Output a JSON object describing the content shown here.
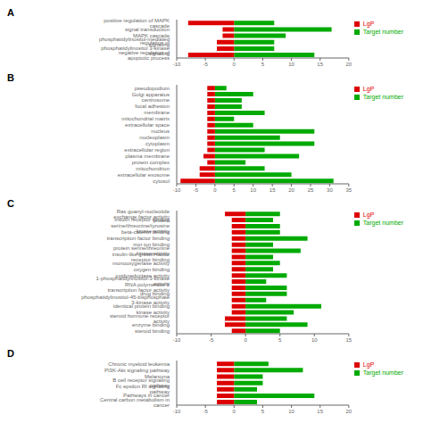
{
  "chart_data": [
    {
      "type": "bar",
      "orientation": "horizontal",
      "title": "A",
      "legend": "right",
      "grid": false,
      "categories": [
        "positive regulation of MAPK cascade",
        "signal transduction",
        "MAPK cascade",
        "phosphatidylinositol-mediated signaling",
        "regulation of phosphatidylinositol 3-kinase signaling",
        "negative regulation of apoptotic process"
      ],
      "series": [
        {
          "name": "Target number",
          "color": "#00AA00",
          "values": [
            7,
            17,
            9,
            7,
            7,
            14
          ]
        },
        {
          "name": "LgP",
          "color": "#DD0000",
          "values": [
            -8,
            -2,
            -2,
            -3,
            -3,
            -8
          ]
        }
      ],
      "xlim": [
        -10,
        20
      ],
      "xticks": [
        -10,
        -5,
        0,
        5,
        10,
        15,
        20
      ]
    },
    {
      "type": "bar",
      "orientation": "horizontal",
      "title": "B",
      "legend": "right",
      "grid": false,
      "categories": [
        "pseudopodium",
        "Golgi apparatus",
        "centrosome",
        "focal adhesion",
        "membrane",
        "mitochondrial matrix",
        "extracellular space",
        "nucleus",
        "nucleoplasm",
        "cytoplasm",
        "extracellular region",
        "plasma membrane",
        "protein complex",
        "mitochondrion",
        "extracellular exosome",
        "cytosol"
      ],
      "series": [
        {
          "name": "Target number",
          "color": "#00AA00",
          "values": [
            3,
            10,
            7,
            7,
            13,
            5,
            10,
            26,
            17,
            26,
            13,
            22,
            8,
            13,
            20,
            31
          ]
        },
        {
          "name": "LgP",
          "color": "#DD0000",
          "values": [
            -2,
            -2,
            -2,
            -2,
            -2,
            -2,
            -2,
            -2,
            -2,
            -2,
            -2,
            -3,
            -2,
            -4,
            -4,
            -9
          ]
        }
      ],
      "xlim": [
        -10,
        35
      ],
      "xticks": [
        -10,
        -5,
        0,
        5,
        10,
        15,
        20,
        25,
        30,
        35
      ]
    },
    {
      "type": "bar",
      "orientation": "horizontal",
      "title": "C",
      "legend": "right",
      "grid": false,
      "categories": [
        "Ras guanyl-nucleotide exchange factor activity",
        "insulin receptor binding",
        "protein serine/threonine/tyrosine kinase activity",
        "beta-catenin binding",
        "transcription factor binding",
        "iron ion binding",
        "protein serine/threonine kinase activity",
        "insulin-like growth factor receptor binding",
        "monooxygenase activity",
        "oxygen binding",
        "oxidoreductase activity",
        "1-phosphatidylinositol-3-kinase activity",
        "RNA polymerase II transcription factor activity",
        "drug binding",
        "phosphatidylinositol-45-bisphosphate 3-kinase activity",
        "identical protein binding",
        "kinase activity",
        "steroid hormone receptor activity",
        "enzyme binding",
        "steroid binding"
      ],
      "series": [
        {
          "name": "Target number",
          "color": "#00AA00",
          "values": [
            5,
            4,
            5,
            5,
            9,
            4,
            8,
            4,
            5,
            4,
            6,
            3,
            6,
            6,
            3,
            11,
            7,
            6,
            9,
            5
          ]
        },
        {
          "name": "LgP",
          "color": "#DD0000",
          "values": [
            -3,
            -2,
            -2,
            -2,
            -2,
            -2,
            -2,
            -2,
            -2,
            -2,
            -2,
            -2,
            -2,
            -2,
            -2,
            -2,
            -2,
            -3,
            -3,
            -2
          ]
        }
      ],
      "xlim": [
        -10,
        15
      ],
      "xticks": [
        -10,
        -5,
        0,
        5,
        10,
        15
      ]
    },
    {
      "type": "bar",
      "orientation": "horizontal",
      "title": "D",
      "legend": "right",
      "grid": false,
      "categories": [
        "Chronic myeloid leukemia",
        "PI3K-Akt signaling pathway",
        "Melanoma",
        "B cell receptor signaling pathway",
        "Fc epsilon RI signaling pathway",
        "Pathways in cancer",
        "Central carbon metabolism in cancer"
      ],
      "series": [
        {
          "name": "Target number",
          "color": "#00AA00",
          "values": [
            6,
            12,
            5,
            5,
            4,
            14,
            4
          ]
        },
        {
          "name": "LgP",
          "color": "#DD0000",
          "values": [
            -3,
            -3,
            -3,
            -3,
            -3,
            -3,
            -3
          ]
        }
      ],
      "xlim": [
        -10,
        20
      ],
      "xticks": [
        -10,
        -5,
        0,
        5,
        10,
        15,
        20
      ]
    }
  ]
}
